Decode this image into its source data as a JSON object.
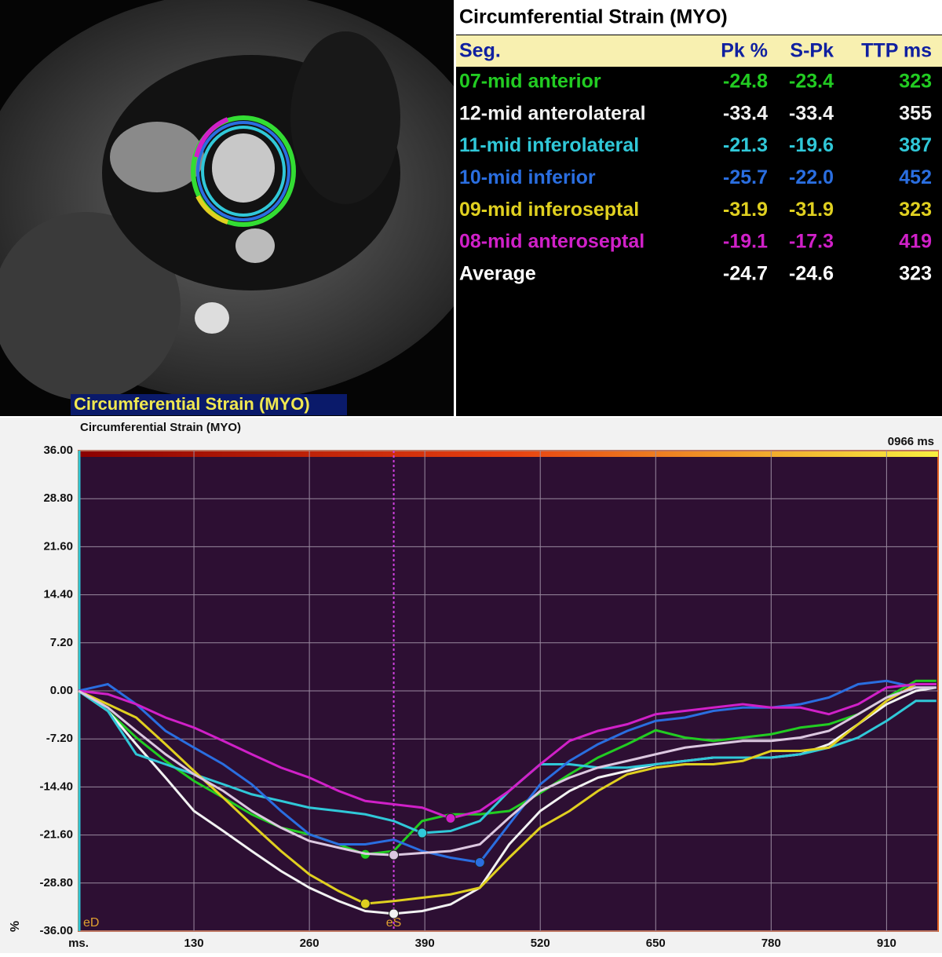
{
  "image_panel": {
    "label": "Circumferential Strain (MYO)"
  },
  "table": {
    "title": "Circumferential Strain (MYO)",
    "header": [
      "Seg.",
      "Pk %",
      "S-Pk",
      "TTP ms"
    ],
    "rows": [
      [
        "07-mid anterior",
        "-24.8",
        "-23.4",
        "323"
      ],
      [
        "12-mid anterolateral",
        "-33.4",
        "-33.4",
        "355"
      ],
      [
        "11-mid inferolateral",
        "-21.3",
        "-19.6",
        "387"
      ],
      [
        "10-mid inferior",
        "-25.7",
        "-22.0",
        "452"
      ],
      [
        "09-mid inferoseptal",
        "-31.9",
        "-31.9",
        "323"
      ],
      [
        "08-mid anteroseptal",
        "-19.1",
        "-17.3",
        "419"
      ],
      [
        "Average",
        "-24.7",
        "-24.6",
        "323"
      ]
    ]
  },
  "chart_data": {
    "type": "line",
    "title": "Circumferential Strain (MYO)",
    "time_label": "0966 ms",
    "y_label": "%",
    "xlim": [
      0,
      968
    ],
    "ylim": [
      -36,
      36
    ],
    "xticks": [
      {
        "value": 0,
        "label": "ms."
      },
      130,
      260,
      390,
      520,
      650,
      780,
      910
    ],
    "yticks": [
      {
        "value": 36,
        "label": "36.00"
      },
      {
        "value": 28.8,
        "label": "28.80"
      },
      {
        "value": 21.6,
        "label": "21.60"
      },
      {
        "value": 14.4,
        "label": "14.40"
      },
      {
        "value": 7.2,
        "label": "7.20"
      },
      {
        "value": 0,
        "label": "0.00"
      },
      {
        "value": -7.2,
        "label": "-7.20"
      },
      {
        "value": -14.4,
        "label": "-14.40"
      },
      {
        "value": -21.6,
        "label": "-21.60"
      },
      {
        "value": -28.8,
        "label": "-28.80"
      },
      {
        "value": -36,
        "label": "-36.00"
      }
    ],
    "grid": true,
    "events": [
      {
        "label": "eD",
        "x": 0
      },
      {
        "label": "eS",
        "x": 355
      }
    ],
    "x": [
      0,
      33,
      65,
      98,
      130,
      163,
      195,
      228,
      260,
      293,
      323,
      355,
      387,
      419,
      452,
      485,
      520,
      553,
      585,
      618,
      650,
      683,
      715,
      748,
      780,
      813,
      845,
      878,
      910,
      943,
      966
    ],
    "series": [
      {
        "name": "07-mid anterior",
        "color": "#22cc22",
        "values": [
          0,
          -3,
          -7,
          -10.5,
          -13.5,
          -16,
          -18.5,
          -20.5,
          -21.5,
          -23,
          -24.5,
          -24,
          -19.5,
          -18.5,
          -18.5,
          -18,
          -15.3,
          -12.5,
          -10,
          -8,
          -5.9,
          -7,
          -7.5,
          -7,
          -6.5,
          -5.5,
          -5,
          -3.5,
          -1,
          1.5,
          1.5
        ]
      },
      {
        "name": "12-mid anterolateral",
        "color": "#f2f2f2",
        "values": [
          0,
          -3,
          -8,
          -13,
          -18,
          -21,
          -24,
          -27,
          -29.5,
          -31.5,
          -33,
          -33.4,
          -33,
          -32,
          -29.5,
          -23,
          -18,
          -15,
          -13,
          -12,
          -11,
          -10.5,
          -10,
          -10,
          -10,
          -9.5,
          -8,
          -5,
          -2,
          0,
          0.5
        ]
      },
      {
        "name": "11-mid inferolateral",
        "color": "#30c8d8",
        "values": [
          0,
          -3,
          -9.5,
          -11,
          -12.5,
          -14,
          -15.5,
          -16.5,
          -17.5,
          -18,
          -18.5,
          -19.5,
          -21.3,
          -21,
          -19.5,
          -15,
          -11,
          -11,
          -11.5,
          -11.5,
          -11,
          -10.5,
          -10,
          -10,
          -10,
          -9.5,
          -8.5,
          -7,
          -4.5,
          -1.5,
          -1.5
        ]
      },
      {
        "name": "10-mid inferior",
        "color": "#2a6ee0",
        "values": [
          0,
          1,
          -2,
          -6,
          -8.5,
          -11,
          -14,
          -18,
          -21.5,
          -23,
          -23,
          -22.3,
          -24,
          -25,
          -25.7,
          -20,
          -14,
          -10.5,
          -8,
          -6,
          -4.5,
          -4,
          -3,
          -2.5,
          -2.5,
          -2,
          -1,
          1,
          1.5,
          0.5,
          0.5
        ]
      },
      {
        "name": "09-mid inferoseptal",
        "color": "#e0d020",
        "values": [
          0,
          -2,
          -4,
          -8,
          -12,
          -16,
          -20,
          -24,
          -27.5,
          -30,
          -31.9,
          -31.5,
          -31,
          -30.5,
          -29.5,
          -25,
          -20.5,
          -18,
          -15,
          -12.5,
          -11.5,
          -11,
          -11,
          -10.5,
          -9,
          -9,
          -8.5,
          -5,
          -1.5,
          1,
          1
        ]
      },
      {
        "name": "08-mid anteroseptal",
        "color": "#d020c8",
        "values": [
          0,
          -0.5,
          -2,
          -4,
          -5.5,
          -7.5,
          -9.5,
          -11.5,
          -13,
          -15,
          -16.5,
          -17,
          -17.5,
          -19.1,
          -18,
          -15,
          -11,
          -7.5,
          -6,
          -5,
          -3.5,
          -3,
          -2.5,
          -2,
          -2.5,
          -2.5,
          -3.5,
          -2,
          0.5,
          1,
          1
        ]
      },
      {
        "name": "Average",
        "color": "#dcc8e0",
        "values": [
          0,
          -2.5,
          -6,
          -9.5,
          -12.5,
          -15,
          -18,
          -20.5,
          -22.5,
          -23.5,
          -24.4,
          -24.6,
          -24.3,
          -24,
          -23,
          -19,
          -15,
          -13,
          -11.5,
          -10.5,
          -9.5,
          -8.5,
          -8,
          -7.5,
          -7.5,
          -7,
          -6,
          -3.5,
          -1,
          0.5,
          0.5
        ]
      }
    ]
  }
}
